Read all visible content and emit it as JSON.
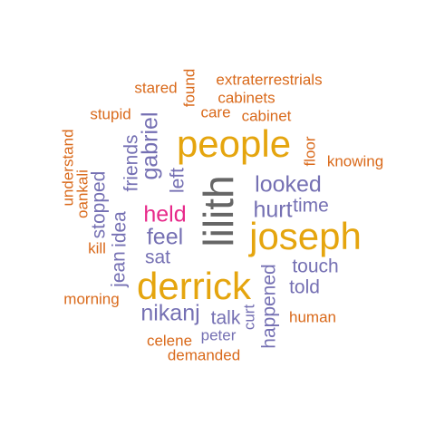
{
  "words": {
    "lilith": "lilith",
    "people": "people",
    "joseph": "joseph",
    "derrick": "derrick",
    "held": "held",
    "looked": "looked",
    "hurt": "hurt",
    "feel": "feel",
    "gabriel": "gabriel",
    "nikanj": "nikanj",
    "friends": "friends",
    "left": "left",
    "idea": "idea",
    "stopped": "stopped",
    "time": "time",
    "sat": "sat",
    "jean": "jean",
    "touch": "touch",
    "told": "told",
    "talk": "talk",
    "peter": "peter",
    "happened": "happened",
    "curt": "curt",
    "extraterrestrials": "extraterrestrials",
    "stared": "stared",
    "found": "found",
    "cabinets": "cabinets",
    "care": "care",
    "cabinet": "cabinet",
    "stupid": "stupid",
    "understand": "understand",
    "floor": "floor",
    "knowing": "knowing",
    "oankali": "oankali",
    "kill": "kill",
    "morning": "morning",
    "human": "human",
    "celene": "celene",
    "demanded": "demanded"
  },
  "colors": {
    "orange": "#d9691a",
    "gold": "#e5a50e",
    "purple": "#7570b3",
    "pink": "#e7298a",
    "gray": "#666666"
  }
}
